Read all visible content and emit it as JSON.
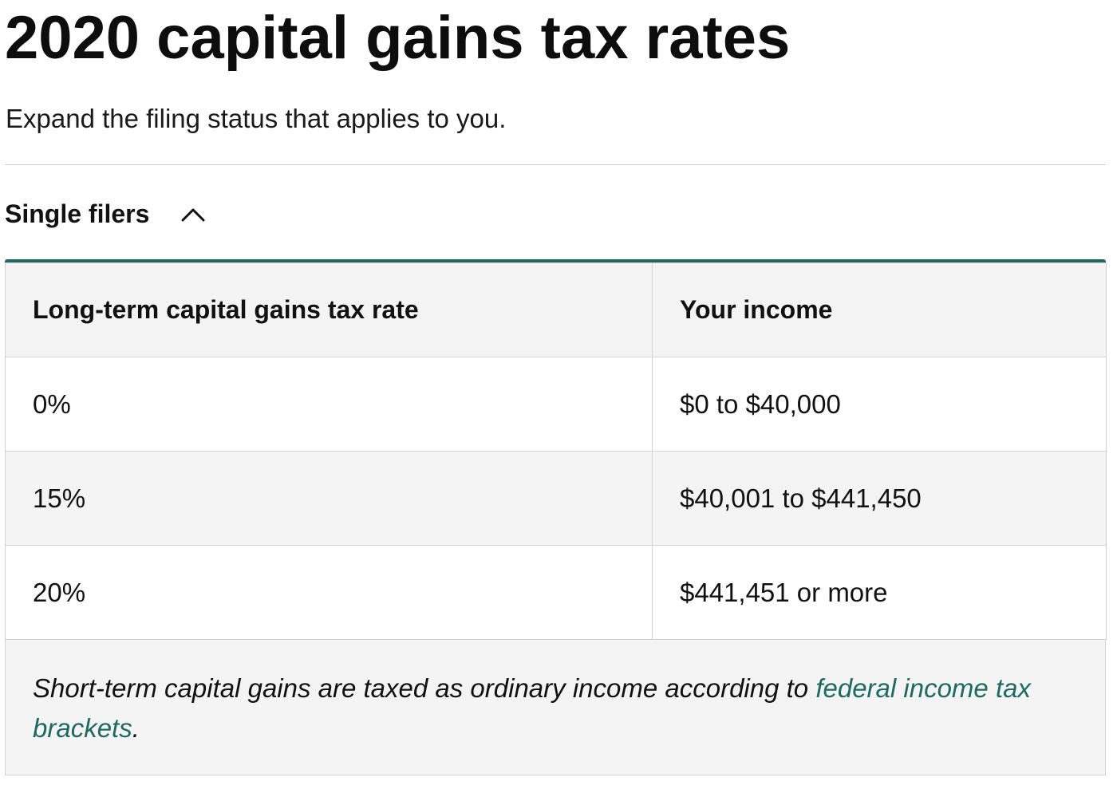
{
  "header": {
    "title": "2020 capital gains tax rates",
    "subtitle": "Expand the filing status that applies to you."
  },
  "accordion": {
    "label": "Single filers",
    "toggle_icon": "chevron-up-icon",
    "expanded": true
  },
  "table": {
    "columns": [
      "Long-term capital gains tax rate",
      "Your income"
    ],
    "rows": [
      [
        "0%",
        "$0 to $40,000"
      ],
      [
        "15%",
        "$40,001 to $441,450"
      ],
      [
        "20%",
        "$441,451 or more"
      ]
    ],
    "footnote": {
      "text": "Short-term capital gains are taxed as ordinary income according to ",
      "link_text": "federal income tax brackets",
      "end": "."
    }
  },
  "colors": {
    "accent": "#1e6a62",
    "text": "#111111",
    "shaded_row": "#f4f4f4",
    "border": "#d2d2d2"
  }
}
